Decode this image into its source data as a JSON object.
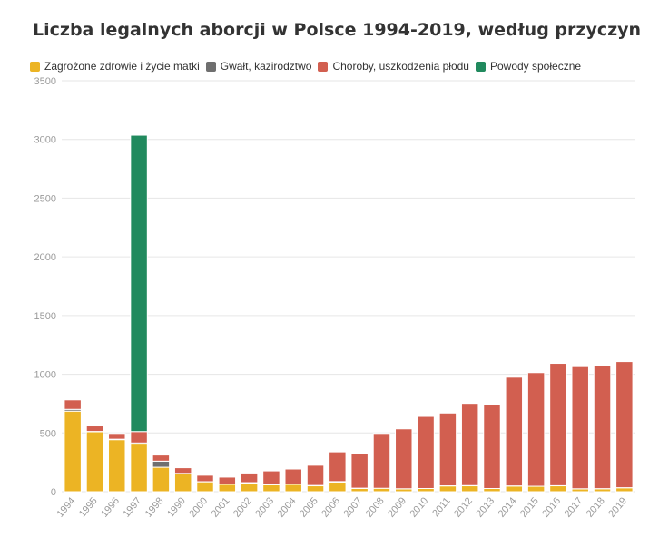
{
  "chart_data": {
    "type": "bar",
    "stacked": true,
    "title": "Liczba legalnych aborcji w Polsce 1994-2019, według przyczyn",
    "categories": [
      "1994",
      "1995",
      "1996",
      "1997",
      "1998",
      "1999",
      "2000",
      "2001",
      "2002",
      "2003",
      "2004",
      "2005",
      "2006",
      "2007",
      "2008",
      "2009",
      "2010",
      "2011",
      "2012",
      "2013",
      "2014",
      "2015",
      "2016",
      "2017",
      "2018",
      "2019"
    ],
    "series": [
      {
        "name": "Zagrożone zdrowie i życie matki",
        "color": "#ecb424",
        "values": [
          686,
          510,
          443,
          405,
          208,
          151,
          84,
          63,
          71,
          59,
          62,
          50,
          82,
          27,
          29,
          24,
          27,
          49,
          50,
          27,
          48,
          46,
          50,
          24,
          25,
          33
        ]
      },
      {
        "name": "Gwałt, kazirodztwo",
        "color": "#6f6f6f",
        "values": [
          15,
          3,
          4,
          10,
          52,
          5,
          1,
          1,
          6,
          2,
          3,
          3,
          4,
          3,
          0,
          1,
          0,
          1,
          2,
          0,
          1,
          0,
          1,
          1,
          1,
          1
        ]
      },
      {
        "name": "Choroby, uszkodzenia płodu",
        "color": "#d25f50",
        "values": [
          81,
          47,
          49,
          97,
          52,
          48,
          55,
          60,
          82,
          116,
          128,
          172,
          253,
          294,
          467,
          510,
          614,
          620,
          700,
          718,
          926,
          968,
          1042,
          1040,
          1050,
          1074
        ]
      },
      {
        "name": "Powody społeczne",
        "color": "#218a5e",
        "values": [
          0,
          0,
          0,
          2524,
          0,
          0,
          0,
          0,
          0,
          0,
          0,
          0,
          0,
          0,
          0,
          0,
          0,
          0,
          0,
          0,
          0,
          0,
          0,
          0,
          0,
          0
        ]
      }
    ],
    "ylim": [
      0,
      3500
    ],
    "yticks": [
      0,
      500,
      1000,
      1500,
      2000,
      2500,
      3000,
      3500
    ],
    "xlabel": "",
    "ylabel": "",
    "grid": true,
    "legend_position": "top-left"
  }
}
